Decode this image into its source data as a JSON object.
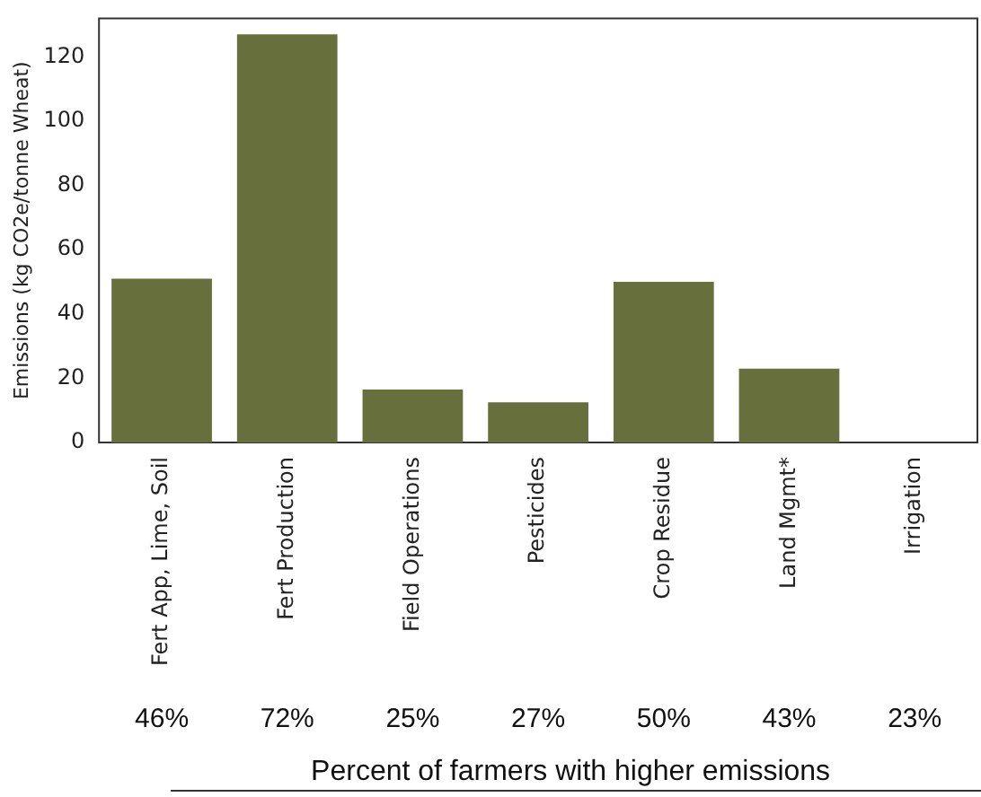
{
  "chart_data": {
    "type": "bar",
    "ylabel": "Emissions (kg CO2e/tonne Wheat)",
    "xlabel": "Percent of farmers with higher emissions",
    "categories": [
      "Fert App, Lime, Soil",
      "Fert Production",
      "Field Operations",
      "Pesticides",
      "Crop Residue",
      "Land Mgmt*",
      "Irrigation"
    ],
    "values": [
      51,
      127,
      16.5,
      12.5,
      50,
      23,
      0
    ],
    "color": "#67703d",
    "ylim": [
      0,
      132
    ],
    "yticks": [
      0,
      20,
      40,
      60,
      80,
      100,
      120
    ],
    "grid": false,
    "legend": false,
    "annotations": [
      "46%",
      "72%",
      "25%",
      "27%",
      "50%",
      "43%",
      "23%"
    ]
  }
}
